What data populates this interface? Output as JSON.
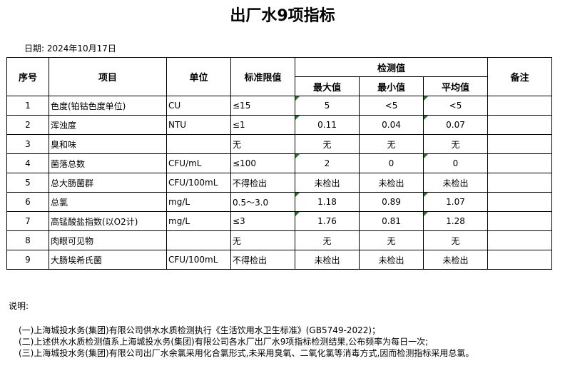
{
  "title": "出厂水9项指标",
  "date": "日期: 2024年10月17日",
  "headers": {
    "no": "序号",
    "item": "项目",
    "unit": "单位",
    "limit": "标准限值",
    "measured": "检测值",
    "max": "最大值",
    "min": "最小值",
    "avg": "平均值",
    "remark": "备注"
  },
  "rows": [
    {
      "no": "1",
      "item": "色度(铂钴色度单位)",
      "unit": "CU",
      "limit": "≤15",
      "max": "5",
      "min": "<5",
      "avg": "<5",
      "flag": true
    },
    {
      "no": "2",
      "item": "浑浊度",
      "unit": "NTU",
      "limit": "≤1",
      "max": "0.11",
      "min": "0.04",
      "avg": "0.07",
      "flag": true
    },
    {
      "no": "3",
      "item": "臭和味",
      "unit": "",
      "limit": "无",
      "max": "无",
      "min": "无",
      "avg": "无",
      "flag": false
    },
    {
      "no": "4",
      "item": "菌落总数",
      "unit": "CFU/mL",
      "limit": "≤100",
      "max": "2",
      "min": "0",
      "avg": "0",
      "flag": true
    },
    {
      "no": "5",
      "item": "总大肠菌群",
      "unit": "CFU/100mL",
      "limit": "不得检出",
      "max": "未检出",
      "min": "未检出",
      "avg": "未检出",
      "flag": false
    },
    {
      "no": "6",
      "item": "总氯",
      "unit": "mg/L",
      "limit": "0.5～3.0",
      "max": "1.18",
      "min": "0.89",
      "avg": "1.07",
      "flag": true
    },
    {
      "no": "7",
      "item": "高锰酸盐指数(以O2计)",
      "unit": "mg/L",
      "limit": "≤3",
      "max": "1.76",
      "min": "0.81",
      "avg": "1.28",
      "flag": true
    },
    {
      "no": "8",
      "item": "肉眼可见物",
      "unit": "",
      "limit": "无",
      "max": "无",
      "min": "无",
      "avg": "无",
      "flag": false
    },
    {
      "no": "9",
      "item": "大肠埃希氏菌",
      "unit": "CFU/100mL",
      "limit": "不得检出",
      "max": "未检出",
      "min": "未检出",
      "avg": "未检出",
      "flag": false
    }
  ],
  "notes": {
    "label": "说明:",
    "items": [
      "(一)上海城投水务(集团)有限公司供水水质检测执行《生活饮用水卫生标准》(GB5749-2022)；",
      "(二)上述供水水质检测值系上海城投水务(集团)有限公司各水厂出厂水9项指标检测结果,公布频率为每日一次;",
      "(三)上海城投水务(集团)有限公司出厂水余氯采用化合氯形式,未采用臭氧、二氧化氯等消毒方式,因而检测指标采用总氯。"
    ]
  },
  "colors": {
    "cell_marker": "#1a7a1a"
  }
}
